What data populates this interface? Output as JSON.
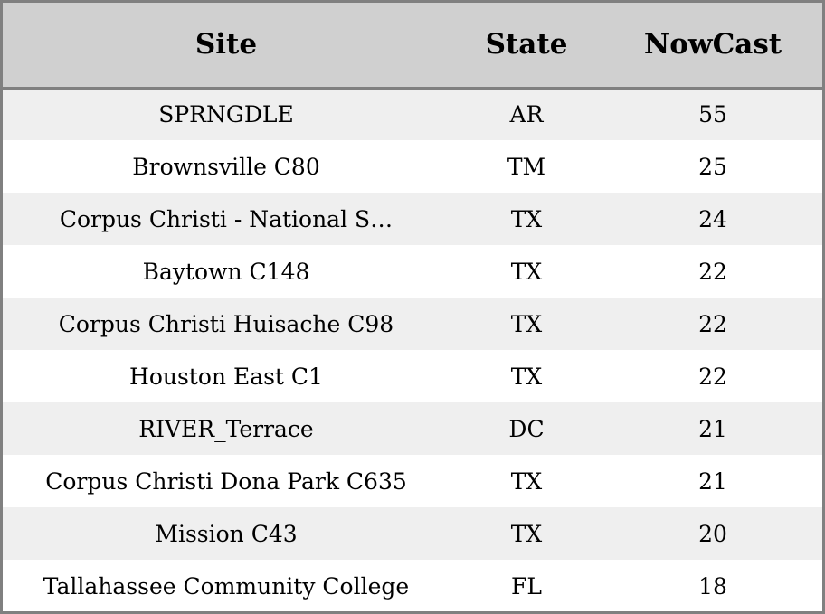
{
  "table": {
    "headers": {
      "site": "Site",
      "state": "State",
      "nowcast": "NowCast"
    },
    "rows": [
      {
        "site": "SPRNGDLE",
        "state": "AR",
        "nowcast": "55"
      },
      {
        "site": "Brownsville C80",
        "state": "TM",
        "nowcast": "25"
      },
      {
        "site": "Corpus Christi - National S…",
        "state": "TX",
        "nowcast": "24"
      },
      {
        "site": "Baytown C148",
        "state": "TX",
        "nowcast": "22"
      },
      {
        "site": "Corpus Christi Huisache C98",
        "state": "TX",
        "nowcast": "22"
      },
      {
        "site": "Houston East C1",
        "state": "TX",
        "nowcast": "22"
      },
      {
        "site": "RIVER_Terrace",
        "state": "DC",
        "nowcast": "21"
      },
      {
        "site": "Corpus Christi Dona Park C635",
        "state": "TX",
        "nowcast": "21"
      },
      {
        "site": "Mission C43",
        "state": "TX",
        "nowcast": "20"
      },
      {
        "site": "Tallahassee Community College",
        "state": "FL",
        "nowcast": "18"
      }
    ]
  },
  "colors": {
    "header_bg": "#d0d0d0",
    "stripe_bg": "#efefef",
    "row_bg": "#ffffff",
    "border": "#808080"
  }
}
